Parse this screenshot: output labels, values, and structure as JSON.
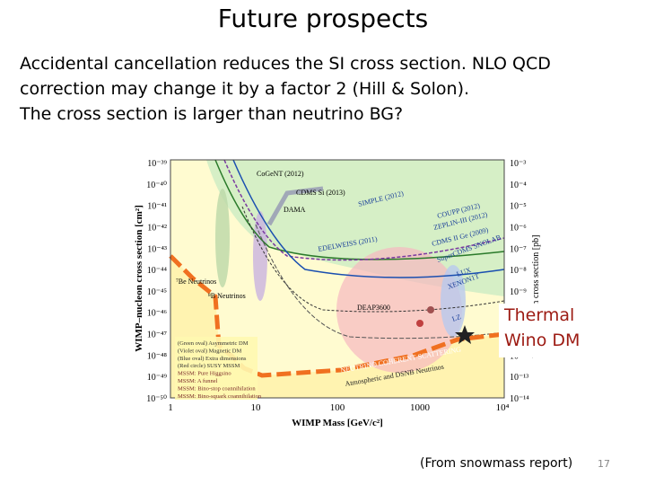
{
  "title": "Future prospects",
  "body": [
    "Accidental cancellation reduces the SI cross section. NLO QCD",
    "correction may change it by a factor 2 (Hill & Solon).",
    "The cross section is larger than neutrino BG?"
  ],
  "figure": {
    "y_axis_label": "WIMP–nucleon cross section [cm²]",
    "y2_axis_label": "WIMP–nucleon cross section [pb]",
    "x_axis_label": "WIMP Mass [GeV/c²]",
    "y_ticks": [
      "10⁻³⁹",
      "10⁻⁴⁰",
      "10⁻⁴¹",
      "10⁻⁴²",
      "10⁻⁴³",
      "10⁻⁴⁴",
      "10⁻⁴⁵",
      "10⁻⁴⁶",
      "10⁻⁴⁷",
      "10⁻⁴⁸",
      "10⁻⁴⁹",
      "10⁻⁵⁰"
    ],
    "y2_ticks": [
      "10⁻³",
      "10⁻⁴",
      "10⁻⁵",
      "10⁻⁶",
      "10⁻⁷",
      "10⁻⁸",
      "10⁻⁹",
      "10⁻¹⁰",
      "10⁻¹¹",
      "10⁻¹²",
      "10⁻¹³",
      "10⁻¹⁴"
    ],
    "x_ticks": [
      "1",
      "10",
      "100",
      "1000",
      "10⁴"
    ],
    "labels": [
      "CoGeNT (2012)",
      "CDMS Si (2013)",
      "DAMA",
      "SIMPLE (2012)",
      "COUPP (2012)",
      "ZEPLIN-III (2012)",
      "CDMS II Ge (2009)",
      "EDELWEISS (2011)",
      "SuperCDMS SNOLAB",
      "DEAP3600",
      "XENON1T",
      "LUX",
      "LZ",
      "⁷Be Neutrinos",
      "⁸B Neutrinos",
      "NEUTRINO COHERENT SCATTERING",
      "Atmospheric and DSNB Neutrinos"
    ],
    "legend": [
      "(Green oval) Asymmetric DM",
      "(Violet oval) Magnetic DM",
      "(Blue oval) Extra dimensions",
      "(Red circle) SUSY MSSM",
      "MSSM: Pure Higgsino",
      "MSSM: A funnel",
      "MSSM: Bino-stop coannihilation",
      "MSSM: Bino-squark coannihilation"
    ]
  },
  "annotation": [
    "Thermal",
    "Wino DM"
  ],
  "footer": "(From snowmass report)",
  "page_number": "17"
}
